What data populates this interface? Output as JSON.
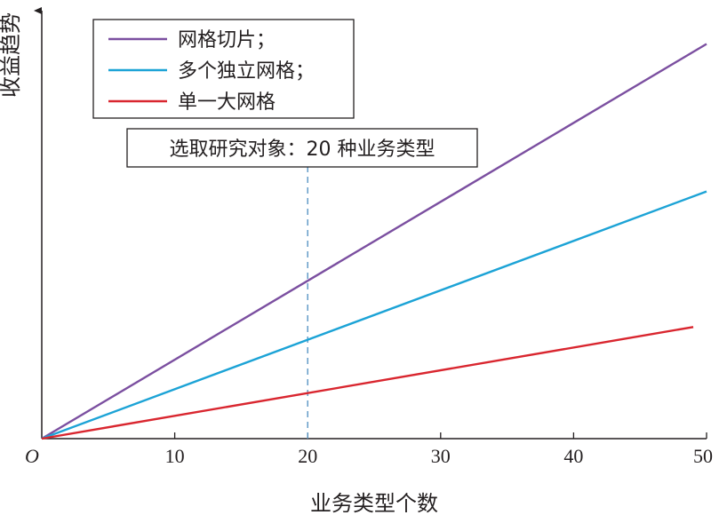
{
  "chart_data": {
    "type": "line",
    "title": "",
    "xlabel": "业务类型个数",
    "ylabel": "收益趋势",
    "origin_label": "O",
    "xlim": [
      0,
      50
    ],
    "ylim": [
      0,
      1
    ],
    "x_ticks": [
      10,
      20,
      30,
      40,
      50
    ],
    "grid": false,
    "legend": "top-left",
    "series": [
      {
        "name": "网格切片；",
        "color": "#7b4fa0",
        "x": [
          0,
          50
        ],
        "y": [
          0,
          0.99
        ]
      },
      {
        "name": "多个独立网格；",
        "color": "#1ca3d6",
        "x": [
          0,
          50
        ],
        "y": [
          0,
          0.62
        ]
      },
      {
        "name": "单一大网格",
        "color": "#d9262f",
        "x": [
          0,
          49
        ],
        "y": [
          0,
          0.28
        ]
      }
    ],
    "annotation": {
      "text": "选取研究对象：20 种业务类型",
      "x": 20,
      "color": "#2e8bc0",
      "line_color": "#5a95c4"
    }
  }
}
